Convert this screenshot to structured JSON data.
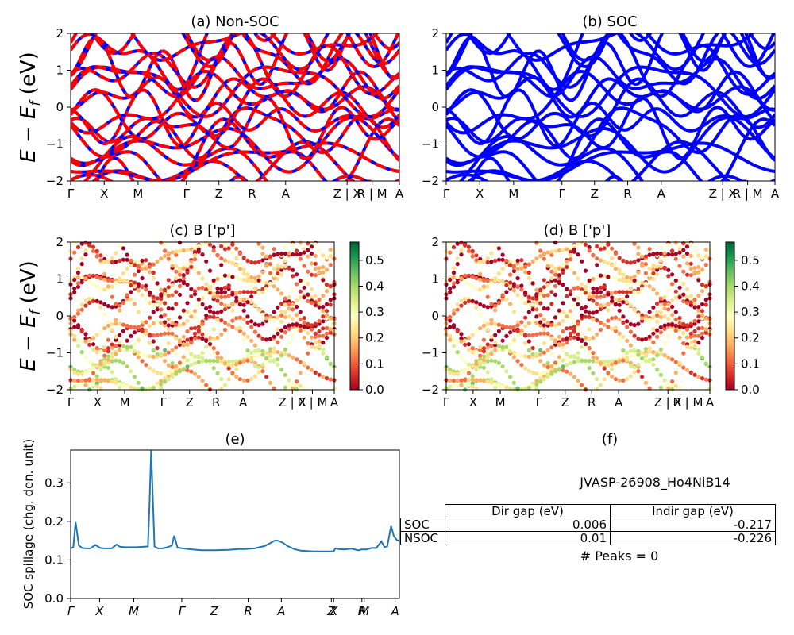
{
  "chart_data": [
    {
      "id": "a",
      "type": "line",
      "title": "(a) Non-SOC",
      "ylabel": "$E - E_f$ (eV)",
      "ylim": [
        -2,
        2
      ],
      "yticks": [
        "2",
        "1",
        "0",
        "−1",
        "−2"
      ],
      "xticks": [
        "Γ",
        "X",
        "M",
        "Γ",
        "Z",
        "R",
        "A",
        "Z | X",
        "R | M",
        "A"
      ],
      "series_colors": [
        "#0000ff",
        "#ff0000"
      ],
      "style": "blue solid bands overlaid with red dashed bands"
    },
    {
      "id": "b",
      "type": "line",
      "title": "(b) SOC",
      "ylim": [
        -2,
        2
      ],
      "yticks": [
        "2",
        "1",
        "0",
        "−1",
        "−2"
      ],
      "xticks": [
        "Γ",
        "X",
        "M",
        "Γ",
        "Z",
        "R",
        "A",
        "Z | X",
        "R | M",
        "A"
      ],
      "series_colors": [
        "#0000ff"
      ]
    },
    {
      "id": "c",
      "type": "scatter",
      "title": "(c)  B ['p']",
      "ylabel": "$E - E_f$ (eV)",
      "ylim": [
        -2,
        2
      ],
      "yticks": [
        "2",
        "1",
        "0",
        "−1",
        "−2"
      ],
      "xticks": [
        "Γ",
        "X",
        "M",
        "Γ",
        "Z",
        "R",
        "A",
        "Z | X",
        "R | M",
        "A"
      ],
      "colorbar": {
        "range": [
          0.0,
          0.57
        ],
        "ticks": [
          "0.5",
          "0.4",
          "0.3",
          "0.2",
          "0.1",
          "0.0"
        ],
        "colormap": "RdYlGn"
      }
    },
    {
      "id": "d",
      "type": "scatter",
      "title": "(d) B ['p']",
      "ylim": [
        -2,
        2
      ],
      "yticks": [
        "2",
        "1",
        "0",
        "−1",
        "−2"
      ],
      "xticks": [
        "Γ",
        "X",
        "M",
        "Γ",
        "Z",
        "R",
        "A",
        "Z | X",
        "R | M",
        "A"
      ],
      "colorbar": {
        "range": [
          0.0,
          0.57
        ],
        "ticks": [
          "0.5",
          "0.4",
          "0.3",
          "0.2",
          "0.1",
          "0.0"
        ],
        "colormap": "RdYlGn"
      }
    },
    {
      "id": "e",
      "type": "line",
      "title": "(e)",
      "ylabel": "SOC spillage (chg. den. unit)",
      "ylim": [
        0.0,
        0.385
      ],
      "yticks": [
        "0.3",
        "0.2",
        "0.1",
        "0.0"
      ],
      "xticks": [
        "Γ",
        "X",
        "M",
        "Γ",
        "Z",
        "R",
        "A",
        "Z",
        "X",
        "R",
        "M",
        "A"
      ],
      "color": "#1f77b4",
      "x": [
        0.0,
        0.008,
        0.015,
        0.025,
        0.035,
        0.045,
        0.06,
        0.075,
        0.09,
        0.1,
        0.11,
        0.125,
        0.14,
        0.15,
        0.165,
        0.18,
        0.2,
        0.22,
        0.235,
        0.24,
        0.245,
        0.255,
        0.265,
        0.28,
        0.295,
        0.308,
        0.315,
        0.325,
        0.34,
        0.37,
        0.4,
        0.44,
        0.48,
        0.51,
        0.53,
        0.56,
        0.59,
        0.61,
        0.62,
        0.63,
        0.645,
        0.66,
        0.68,
        0.7,
        0.74,
        0.775,
        0.8,
        0.805,
        0.815,
        0.83,
        0.855,
        0.875,
        0.885,
        0.9,
        0.915,
        0.93,
        0.945,
        0.955,
        0.963,
        0.975,
        0.983,
        0.993,
        1.0
      ],
      "values": [
        0.13,
        0.133,
        0.198,
        0.138,
        0.131,
        0.13,
        0.13,
        0.139,
        0.131,
        0.13,
        0.13,
        0.13,
        0.14,
        0.134,
        0.133,
        0.133,
        0.133,
        0.134,
        0.135,
        0.25,
        0.385,
        0.135,
        0.13,
        0.13,
        0.133,
        0.138,
        0.163,
        0.132,
        0.13,
        0.127,
        0.125,
        0.125,
        0.126,
        0.128,
        0.128,
        0.13,
        0.136,
        0.145,
        0.15,
        0.15,
        0.145,
        0.136,
        0.128,
        0.124,
        0.122,
        0.122,
        0.122,
        0.13,
        0.128,
        0.127,
        0.129,
        0.125,
        0.127,
        0.127,
        0.131,
        0.131,
        0.148,
        0.133,
        0.135,
        0.188,
        0.162,
        0.151,
        0.151
      ]
    }
  ],
  "panel_f": {
    "title": "(f)",
    "material": "JVASP-26908_Ho4NiB14",
    "table": {
      "headers": [
        "Dir gap (eV)",
        "Indir gap (eV)"
      ],
      "rows": [
        {
          "label": "SOC",
          "dir": "0.006",
          "indir": "-0.217"
        },
        {
          "label": "NSOC",
          "dir": "0.01",
          "indir": "-0.226"
        }
      ]
    },
    "peaks": "# Peaks = 0"
  }
}
